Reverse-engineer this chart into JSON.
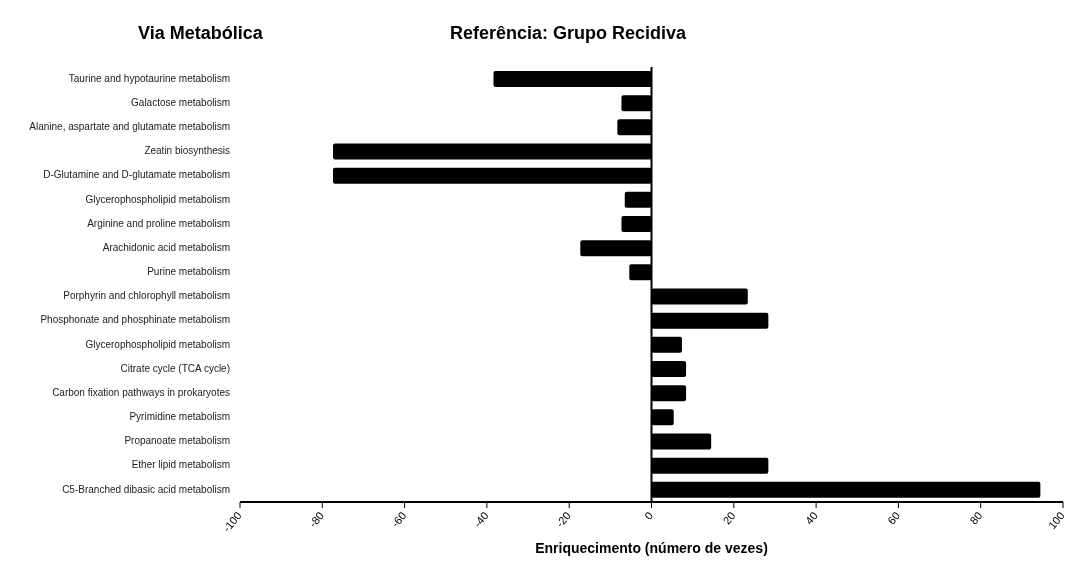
{
  "chart_data": {
    "type": "bar",
    "orientation": "horizontal",
    "title": "Referência: Grupo Recidiva",
    "ylabel": "Via Metabólica",
    "xlabel": "Enriquecimento (número de vezes)",
    "categories": [
      "Taurine and hypotaurine metabolism",
      "Galactose metabolism",
      "Alanine, aspartate and glutamate metabolism",
      "Zeatin biosynthesis",
      "D-Glutamine and D-glutamate metabolism",
      "Glycerophospholipid metabolism",
      "Arginine and proline metabolism",
      "Arachidonic acid metabolism",
      "Purine metabolism",
      "Porphyrin and chlorophyll metabolism",
      "Phosphonate and phosphinate metabolism",
      "Glycerophospholipid metabolism",
      "Citrate cycle (TCA cycle)",
      "Carbon fixation pathways in prokaryotes",
      "Pyrimidine metabolism",
      "Propanoate metabolism",
      "Ether lipid metabolism",
      "C5-Branched dibasic acid metabolism"
    ],
    "values": [
      -38.4,
      -7.3,
      -8.3,
      -77.4,
      -77.4,
      -6.5,
      -7.3,
      -17.3,
      -5.4,
      23.4,
      28.4,
      7.4,
      8.4,
      8.4,
      5.4,
      14.5,
      28.4,
      94.5
    ],
    "color": "#000000",
    "xlim": [
      -100,
      100
    ],
    "xticks": [
      -100,
      -80,
      -60,
      -40,
      -20,
      0,
      20,
      40,
      60,
      80,
      100
    ],
    "legend": false
  }
}
